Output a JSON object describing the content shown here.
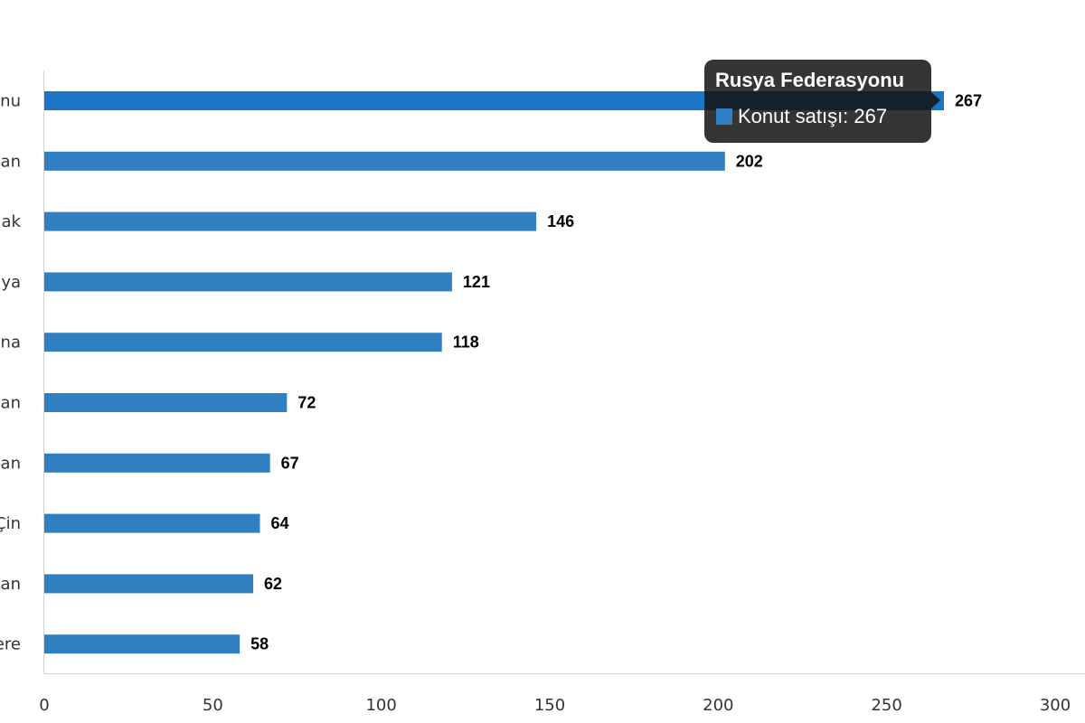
{
  "chart_data": {
    "type": "bar",
    "orientation": "horizontal",
    "categories": [
      "nu",
      "an",
      "ak",
      "ya",
      "na",
      "an",
      "an",
      "Çin",
      "an",
      "ere"
    ],
    "series": [
      {
        "name": "Konut satışı",
        "values": [
          267,
          202,
          146,
          121,
          118,
          72,
          67,
          64,
          62,
          58
        ]
      }
    ],
    "data_labels": [
      "267",
      "202",
      "146",
      "121",
      "118",
      "72",
      "67",
      "64",
      "62",
      "58"
    ],
    "xlim": [
      0,
      300
    ],
    "x_ticks": [
      0,
      50,
      100,
      150,
      200,
      250,
      300
    ],
    "x_tick_labels": [
      "0",
      "50",
      "100",
      "150",
      "200",
      "250",
      "300"
    ],
    "grid": false,
    "highlighted_index": 0,
    "colors": {
      "bar": "#2f7fc1",
      "bar_highlight": "#1a75c8",
      "axis": "#d0d0d0"
    }
  },
  "tooltip": {
    "title": "Rusya Federasyonu",
    "series_text": "Konut satışı: 267"
  }
}
